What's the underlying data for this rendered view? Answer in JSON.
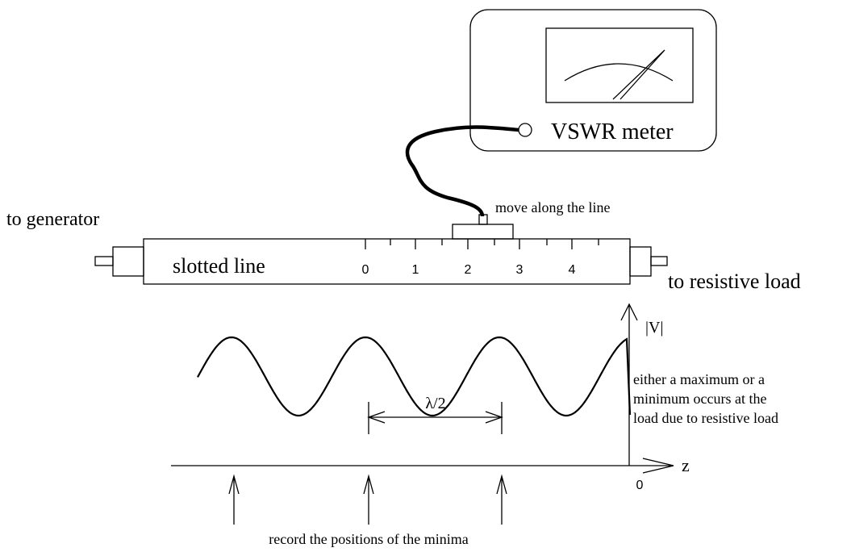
{
  "meter": {
    "label": "VSWR meter"
  },
  "probe": {
    "label": "move along the line"
  },
  "slotted_line": {
    "label": "slotted line",
    "left_end": "to generator",
    "right_end": "to resistive load",
    "scale": [
      "0",
      "1",
      "2",
      "3",
      "4"
    ]
  },
  "plot": {
    "y_label": "|V|",
    "x_label": "z",
    "origin": "0",
    "wavelength_label": "λ/2",
    "note": [
      "either a maximum or a",
      "minimum occurs at the",
      "load due to resistive load"
    ],
    "minima_note": "record the positions of the minima"
  }
}
